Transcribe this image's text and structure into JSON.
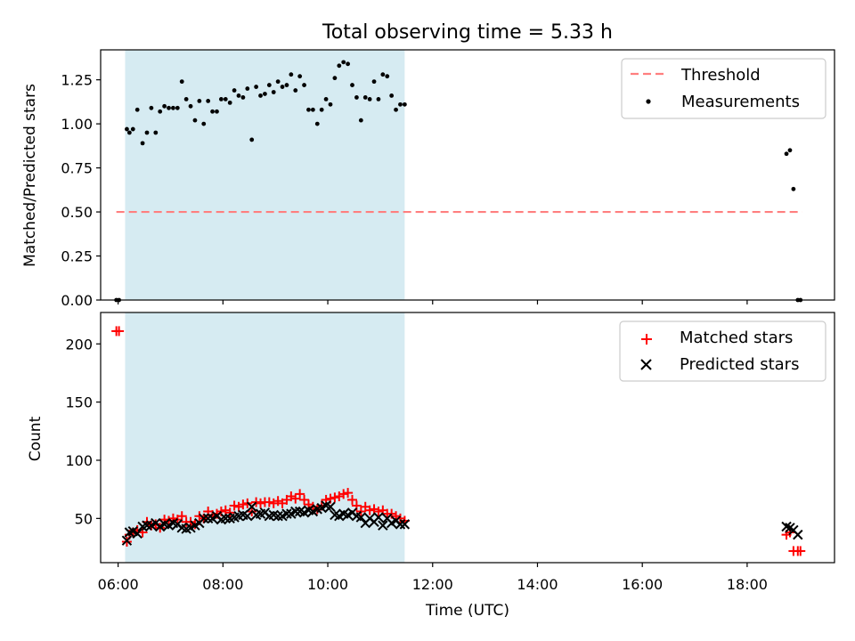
{
  "chart_data": [
    {
      "type": "scatter",
      "title": "Total observing time = 5.33 h",
      "xlabel": "",
      "ylabel": "Matched/Predicted stars",
      "xlim": [
        "05:40",
        "19:40"
      ],
      "ylim": [
        0,
        1.42
      ],
      "y_ticks": [
        "0.00",
        "0.25",
        "0.50",
        "0.75",
        "1.00",
        "1.25"
      ],
      "shaded_interval": {
        "start": "06:08",
        "end": "11:28",
        "color": "#add8e6"
      },
      "threshold": {
        "name": "Threshold",
        "value": 0.5,
        "x_range": [
          "05:58",
          "19:03"
        ],
        "color": "#ff7f7f"
      },
      "series": [
        {
          "name": "Measurements",
          "color": "#000000",
          "x": [
            "05:58",
            "06:01",
            "06:10",
            "06:13",
            "06:17",
            "06:22",
            "06:28",
            "06:33",
            "06:38",
            "06:43",
            "06:48",
            "06:53",
            "06:58",
            "07:03",
            "07:08",
            "07:13",
            "07:18",
            "07:23",
            "07:28",
            "07:33",
            "07:38",
            "07:43",
            "07:48",
            "07:53",
            "07:58",
            "08:03",
            "08:08",
            "08:13",
            "08:18",
            "08:23",
            "08:28",
            "08:33",
            "08:38",
            "08:43",
            "08:48",
            "08:53",
            "08:58",
            "09:03",
            "09:08",
            "09:13",
            "09:18",
            "09:23",
            "09:28",
            "09:33",
            "09:38",
            "09:43",
            "09:48",
            "09:53",
            "09:58",
            "10:03",
            "10:08",
            "10:13",
            "10:18",
            "10:23",
            "10:28",
            "10:33",
            "10:38",
            "10:43",
            "10:48",
            "10:53",
            "10:58",
            "11:03",
            "11:08",
            "11:13",
            "11:18",
            "11:23",
            "11:28",
            "18:45",
            "18:49",
            "18:53",
            "18:58",
            "19:01"
          ],
          "values": [
            0.0,
            0.0,
            0.97,
            0.95,
            0.97,
            1.08,
            0.89,
            0.95,
            1.09,
            0.95,
            1.07,
            1.1,
            1.09,
            1.09,
            1.09,
            1.24,
            1.14,
            1.1,
            1.02,
            1.13,
            1.0,
            1.13,
            1.07,
            1.07,
            1.14,
            1.14,
            1.12,
            1.19,
            1.16,
            1.15,
            1.2,
            0.91,
            1.21,
            1.16,
            1.17,
            1.22,
            1.18,
            1.24,
            1.21,
            1.22,
            1.28,
            1.19,
            1.27,
            1.22,
            1.08,
            1.08,
            1.0,
            1.08,
            1.14,
            1.11,
            1.26,
            1.33,
            1.35,
            1.34,
            1.22,
            1.15,
            1.02,
            1.15,
            1.14,
            1.24,
            1.14,
            1.28,
            1.27,
            1.16,
            1.08,
            1.11,
            1.11,
            0.83,
            0.85,
            0.63,
            0.0,
            0.0
          ]
        }
      ]
    },
    {
      "type": "scatter",
      "title": "",
      "xlabel": "Time (UTC)",
      "ylabel": "Count",
      "xlim": [
        "05:40",
        "19:40"
      ],
      "ylim": [
        12,
        227
      ],
      "y_ticks": [
        "50",
        "100",
        "150",
        "200"
      ],
      "x_ticks": [
        "06:00",
        "08:00",
        "10:00",
        "12:00",
        "14:00",
        "16:00",
        "18:00"
      ],
      "shaded_interval": {
        "start": "06:08",
        "end": "11:28",
        "color": "#add8e6"
      },
      "series": [
        {
          "name": "Matched stars",
          "marker": "+",
          "color": "#ff0000",
          "x": [
            "05:58",
            "06:01",
            "06:10",
            "06:13",
            "06:17",
            "06:22",
            "06:28",
            "06:33",
            "06:38",
            "06:43",
            "06:48",
            "06:53",
            "06:58",
            "07:03",
            "07:08",
            "07:13",
            "07:18",
            "07:23",
            "07:28",
            "07:33",
            "07:38",
            "07:43",
            "07:48",
            "07:53",
            "07:58",
            "08:03",
            "08:08",
            "08:13",
            "08:18",
            "08:23",
            "08:28",
            "08:33",
            "08:38",
            "08:43",
            "08:48",
            "08:53",
            "08:58",
            "09:03",
            "09:08",
            "09:13",
            "09:18",
            "09:23",
            "09:28",
            "09:33",
            "09:38",
            "09:43",
            "09:48",
            "09:53",
            "09:58",
            "10:03",
            "10:08",
            "10:13",
            "10:18",
            "10:23",
            "10:28",
            "10:33",
            "10:38",
            "10:43",
            "10:48",
            "10:53",
            "10:58",
            "11:03",
            "11:08",
            "11:13",
            "11:18",
            "11:23",
            "11:28",
            "18:45",
            "18:49",
            "18:53",
            "18:58",
            "19:01"
          ],
          "values": [
            211,
            211,
            30,
            36,
            38,
            40,
            38,
            47,
            44,
            45,
            42,
            49,
            48,
            50,
            49,
            52,
            47,
            47,
            45,
            52,
            50,
            56,
            53,
            54,
            56,
            57,
            55,
            61,
            60,
            62,
            63,
            56,
            64,
            63,
            64,
            64,
            63,
            65,
            63,
            66,
            69,
            67,
            71,
            66,
            62,
            60,
            58,
            61,
            66,
            67,
            68,
            69,
            71,
            72,
            66,
            61,
            56,
            60,
            57,
            58,
            56,
            57,
            54,
            54,
            52,
            50,
            48,
            36,
            38,
            22,
            22,
            22
          ]
        },
        {
          "name": "Predicted stars",
          "marker": "x",
          "color": "#000000",
          "x": [
            "06:10",
            "06:13",
            "06:17",
            "06:22",
            "06:28",
            "06:33",
            "06:38",
            "06:43",
            "06:48",
            "06:53",
            "06:58",
            "07:03",
            "07:08",
            "07:13",
            "07:18",
            "07:23",
            "07:28",
            "07:33",
            "07:38",
            "07:43",
            "07:48",
            "07:53",
            "07:58",
            "08:03",
            "08:08",
            "08:13",
            "08:18",
            "08:23",
            "08:28",
            "08:33",
            "08:38",
            "08:43",
            "08:48",
            "08:53",
            "08:58",
            "09:03",
            "09:08",
            "09:13",
            "09:18",
            "09:23",
            "09:28",
            "09:33",
            "09:38",
            "09:43",
            "09:48",
            "09:53",
            "09:58",
            "10:03",
            "10:08",
            "10:13",
            "10:18",
            "10:23",
            "10:28",
            "10:33",
            "10:38",
            "10:43",
            "10:48",
            "10:53",
            "10:58",
            "11:03",
            "11:08",
            "11:13",
            "11:18",
            "11:23",
            "11:28",
            "18:45",
            "18:49",
            "18:53",
            "18:58"
          ],
          "values": [
            31,
            38,
            39,
            37,
            43,
            44,
            44,
            46,
            43,
            45,
            44,
            46,
            45,
            42,
            41,
            42,
            44,
            46,
            50,
            50,
            50,
            52,
            49,
            50,
            50,
            51,
            52,
            53,
            52,
            60,
            53,
            54,
            55,
            52,
            53,
            52,
            52,
            54,
            54,
            56,
            56,
            55,
            57,
            56,
            58,
            59,
            61,
            60,
            53,
            52,
            54,
            53,
            55,
            52,
            51,
            46,
            50,
            47,
            51,
            44,
            50,
            46,
            48,
            45,
            45,
            43,
            42,
            40,
            36
          ]
        }
      ]
    }
  ]
}
